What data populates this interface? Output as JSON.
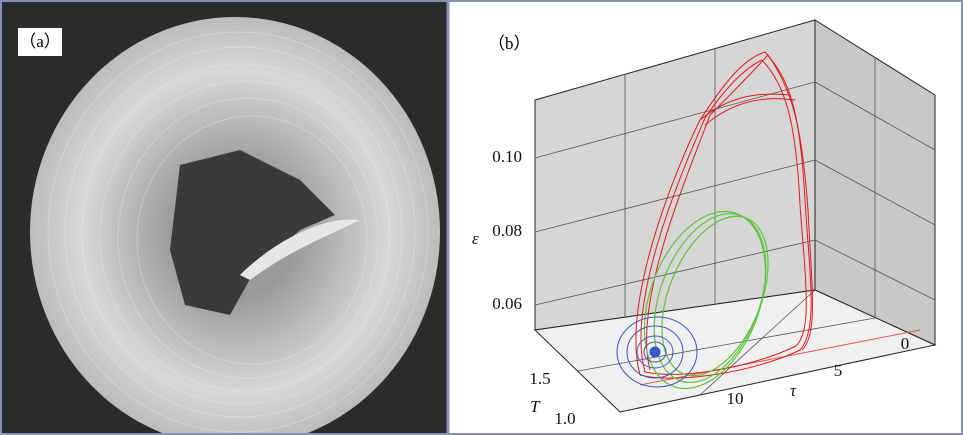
{
  "panel_a": {
    "label": "（a）"
  },
  "panel_b": {
    "label": "（b）",
    "axes": {
      "epsilon": {
        "label": "ε",
        "ticks": [
          "0.06",
          "0.08",
          "0.10"
        ]
      },
      "T": {
        "label": "T",
        "ticks": [
          "1.0",
          "1.5"
        ]
      },
      "tau": {
        "label": "τ",
        "ticks": [
          "0",
          "5",
          "10"
        ]
      }
    }
  }
}
